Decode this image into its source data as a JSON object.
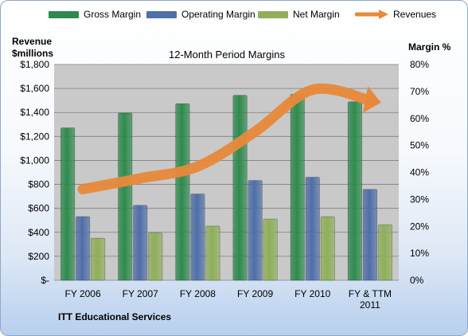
{
  "chart_data": {
    "type": "bar",
    "title": "12-Month Period Margins",
    "left_axis_title": [
      "Revenue",
      "$millions"
    ],
    "right_axis_title": "Margin %",
    "footer": "ITT Educational Services",
    "categories": [
      "FY 2006",
      "FY 2007",
      "FY 2008",
      "FY 2009",
      "FY 2010",
      "FY & TTM 2011"
    ],
    "category_label_lines": [
      [
        "FY 2006"
      ],
      [
        "FY 2007"
      ],
      [
        "FY 2008"
      ],
      [
        "FY 2009"
      ],
      [
        "FY 2010"
      ],
      [
        "FY & TTM",
        "2011"
      ]
    ],
    "left_ticks": [
      "$-",
      "$200",
      "$400",
      "$600",
      "$800",
      "$1,000",
      "$1,200",
      "$1,400",
      "$1,600",
      "$1,800"
    ],
    "right_ticks": [
      "0%",
      "10%",
      "20%",
      "30%",
      "40%",
      "50%",
      "60%",
      "70%",
      "80%"
    ],
    "ylim_left": [
      0,
      1800
    ],
    "ylim_right": [
      0,
      80
    ],
    "grid": true,
    "legend_position": "top",
    "series": [
      {
        "name": "Gross Margin",
        "axis": "right",
        "type": "bar",
        "color": "#2f8a4e",
        "values": [
          56.5,
          62.0,
          65.5,
          68.6,
          69.0,
          66.2
        ]
      },
      {
        "name": "Operating Margin",
        "axis": "right",
        "type": "bar",
        "color": "#4f6fa8",
        "values": [
          23.6,
          27.8,
          32.0,
          37.0,
          38.2,
          33.7
        ]
      },
      {
        "name": "Net Margin",
        "axis": "right",
        "type": "bar",
        "color": "#8faf5a",
        "values": [
          15.6,
          17.5,
          20.1,
          22.7,
          23.6,
          20.6
        ]
      },
      {
        "name": "Revenues",
        "axis": "left",
        "type": "line",
        "color": "#e8893a",
        "values": [
          760,
          850,
          950,
          1240,
          1590,
          1500
        ]
      }
    ]
  }
}
